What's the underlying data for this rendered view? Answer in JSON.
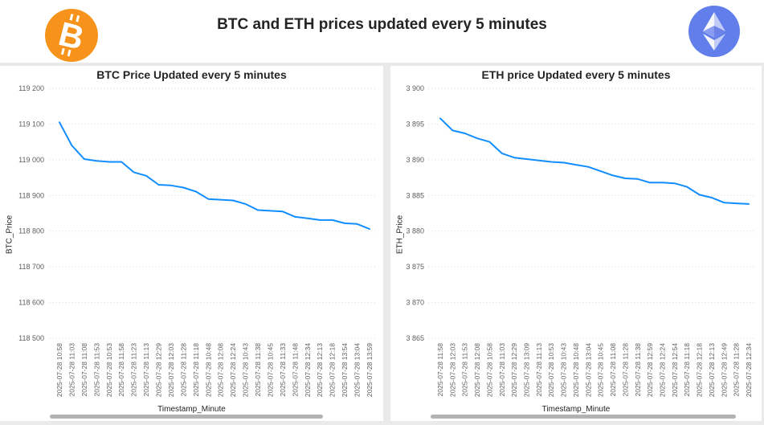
{
  "header": {
    "title": "BTC and ETH prices updated every 5 minutes",
    "btc_logo_color": "#f7931a",
    "eth_logo_color": "#627eea"
  },
  "chart_data": [
    {
      "type": "line",
      "title": "BTC Price Updated every 5 minutes",
      "xlabel": "Timestamp_Minute",
      "ylabel": "BTC_Price",
      "ylim": [
        118500,
        119200
      ],
      "yticks": [
        119200,
        119100,
        119000,
        118900,
        118800,
        118700,
        118600,
        118500
      ],
      "ytick_labels": [
        "119 200",
        "119 100",
        "119 000",
        "118 900",
        "118 800",
        "118 700",
        "118 600",
        "118 500"
      ],
      "grid": true,
      "color": "#118dff",
      "categories": [
        "2025-07-28 10:58",
        "2025-07-28 11:03",
        "2025-07-28 11:08",
        "2025-07-28 11:53",
        "2025-07-28 10:53",
        "2025-07-28 11:58",
        "2025-07-28 11:23",
        "2025-07-28 11:13",
        "2025-07-28 12:29",
        "2025-07-28 12:03",
        "2025-07-28 11:28",
        "2025-07-28 11:18",
        "2025-07-28 10:48",
        "2025-07-28 12:08",
        "2025-07-28 12:24",
        "2025-07-28 10:43",
        "2025-07-28 11:38",
        "2025-07-28 10:45",
        "2025-07-28 11:33",
        "2025-07-28 11:48",
        "2025-07-28 12:34",
        "2025-07-28 12:13",
        "2025-07-28 12:18",
        "2025-07-28 13:54",
        "2025-07-28 13:04",
        "2025-07-28 13:59"
      ],
      "values": [
        119105,
        119040,
        119002,
        118997,
        118994,
        118994,
        118965,
        118955,
        118930,
        118928,
        118922,
        118911,
        118890,
        118888,
        118886,
        118876,
        118859,
        118857,
        118855,
        118840,
        118836,
        118831,
        118831,
        118822,
        118820,
        118806
      ]
    },
    {
      "type": "line",
      "title": "ETH price Updated every 5 minutes",
      "xlabel": "Timestamp_Minute",
      "ylabel": "ETH_Price",
      "ylim": [
        3865,
        3900
      ],
      "yticks": [
        3900,
        3895,
        3890,
        3885,
        3880,
        3875,
        3870,
        3865
      ],
      "ytick_labels": [
        "3 900",
        "3 895",
        "3 890",
        "3 885",
        "3 880",
        "3 875",
        "3 870",
        "3 865"
      ],
      "grid": true,
      "color": "#118dff",
      "categories": [
        "2025-07-28 11:58",
        "2025-07-28 12:03",
        "2025-07-28 11:53",
        "2025-07-28 12:08",
        "2025-07-28 10:58",
        "2025-07-28 11:03",
        "2025-07-28 12:29",
        "2025-07-28 13:09",
        "2025-07-28 11:13",
        "2025-07-28 10:53",
        "2025-07-28 10:43",
        "2025-07-28 10:48",
        "2025-07-28 13:04",
        "2025-07-28 10:45",
        "2025-07-28 11:08",
        "2025-07-28 11:28",
        "2025-07-28 11:38",
        "2025-07-28 12:59",
        "2025-07-28 12:24",
        "2025-07-28 12:54",
        "2025-07-28 11:18",
        "2025-07-28 12:18",
        "2025-07-28 12:13",
        "2025-07-28 12:49",
        "2025-07-28 11:28",
        "2025-07-28 12:34"
      ],
      "values": [
        3895.8,
        3894.1,
        3893.7,
        3893.0,
        3892.5,
        3890.9,
        3890.3,
        3890.1,
        3889.9,
        3889.7,
        3889.6,
        3889.3,
        3889.0,
        3888.4,
        3887.8,
        3887.4,
        3887.3,
        3886.8,
        3886.8,
        3886.7,
        3886.2,
        3885.1,
        3884.7,
        3884.0,
        3883.9,
        3883.8
      ]
    }
  ]
}
